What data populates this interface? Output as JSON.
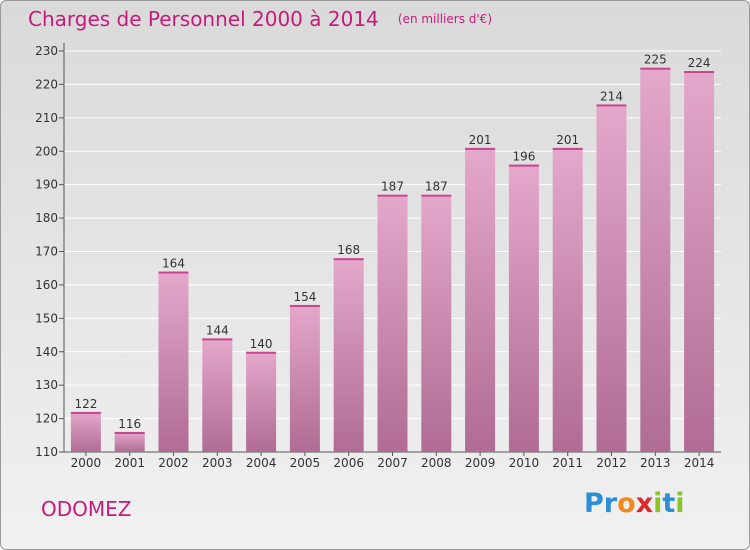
{
  "header": {
    "title": "Charges de Personnel 2000 à 2014",
    "subtitle": "(en milliers d'€)"
  },
  "footer": {
    "commune": "ODOMEZ",
    "logo_text": "Proxiti",
    "logo_letters": [
      {
        "ch": "P",
        "color": "#2e8fd6"
      },
      {
        "ch": "r",
        "color": "#2e8fd6"
      },
      {
        "ch": "o",
        "color": "#f08a1c"
      },
      {
        "ch": "x",
        "color": "#e0282a"
      },
      {
        "ch": "i",
        "color": "#8cc22c"
      },
      {
        "ch": "t",
        "color": "#2e8fd6"
      },
      {
        "ch": "i",
        "color": "#8cc22c"
      }
    ]
  },
  "colors": {
    "accent": "#c71b7b",
    "bar_top": "#e4a8cb",
    "bar_bottom": "#b06c94"
  },
  "chart_data": {
    "type": "bar",
    "title": "Charges de Personnel 2000 à 2014",
    "subtitle": "(en milliers d'€)",
    "categories": [
      "2000",
      "2001",
      "2002",
      "2003",
      "2004",
      "2005",
      "2006",
      "2007",
      "2008",
      "2009",
      "2010",
      "2011",
      "2012",
      "2013",
      "2014"
    ],
    "values": [
      122,
      116,
      164,
      144,
      140,
      154,
      168,
      187,
      187,
      201,
      196,
      201,
      214,
      225,
      224
    ],
    "ylim": [
      110,
      230
    ],
    "yticks": [
      110,
      120,
      130,
      140,
      150,
      160,
      170,
      180,
      190,
      200,
      210,
      220,
      230
    ],
    "grid": true,
    "legend": "none"
  }
}
